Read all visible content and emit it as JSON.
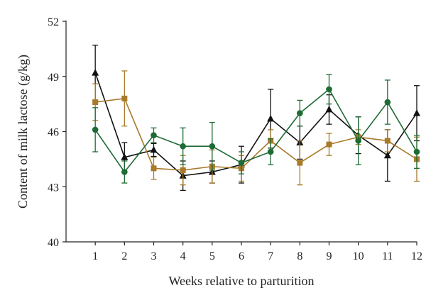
{
  "chart_data": {
    "type": "line",
    "title": "",
    "xlabel": "Weeks relative to parturition",
    "ylabel": "Content of milk lactose (g/kg)",
    "xlim": [
      0,
      12
    ],
    "ylim": [
      40,
      52
    ],
    "x_ticks": [
      "1",
      "2",
      "3",
      "4",
      "5",
      "6",
      "7",
      "8",
      "9",
      "10",
      "11",
      "12"
    ],
    "y_ticks": [
      "40",
      "43",
      "46",
      "49",
      "52"
    ],
    "grid": false,
    "legend": "none",
    "x": [
      1,
      2,
      3,
      4,
      5,
      6,
      7,
      8,
      9,
      10,
      11,
      12
    ],
    "series": [
      {
        "marker": "triangle",
        "color": "#111111",
        "values": [
          49.2,
          44.6,
          45.0,
          43.6,
          43.8,
          44.2,
          46.7,
          45.4,
          47.2,
          45.8,
          44.7,
          47.0
        ],
        "error": [
          1.5,
          0.8,
          0.35,
          0.8,
          0.6,
          1.0,
          1.6,
          0.9,
          0.8,
          1.0,
          1.4,
          1.5
        ]
      },
      {
        "marker": "square",
        "color": "#a87a2a",
        "values": [
          47.6,
          47.8,
          44.0,
          43.9,
          44.1,
          44.0,
          45.5,
          44.3,
          45.3,
          45.7,
          45.5,
          44.5
        ],
        "error": [
          1.0,
          1.5,
          0.6,
          0.8,
          0.9,
          0.7,
          0.6,
          1.2,
          0.6,
          0.4,
          0.6,
          1.2
        ]
      },
      {
        "marker": "circle",
        "color": "#1e6b34",
        "values": [
          46.1,
          43.8,
          45.8,
          45.2,
          45.2,
          44.3,
          44.9,
          47.0,
          48.3,
          45.5,
          47.6,
          44.9
        ],
        "error": [
          1.2,
          0.6,
          0.4,
          1.0,
          1.3,
          0.6,
          0.7,
          0.7,
          0.8,
          1.3,
          1.2,
          0.9
        ]
      }
    ]
  }
}
